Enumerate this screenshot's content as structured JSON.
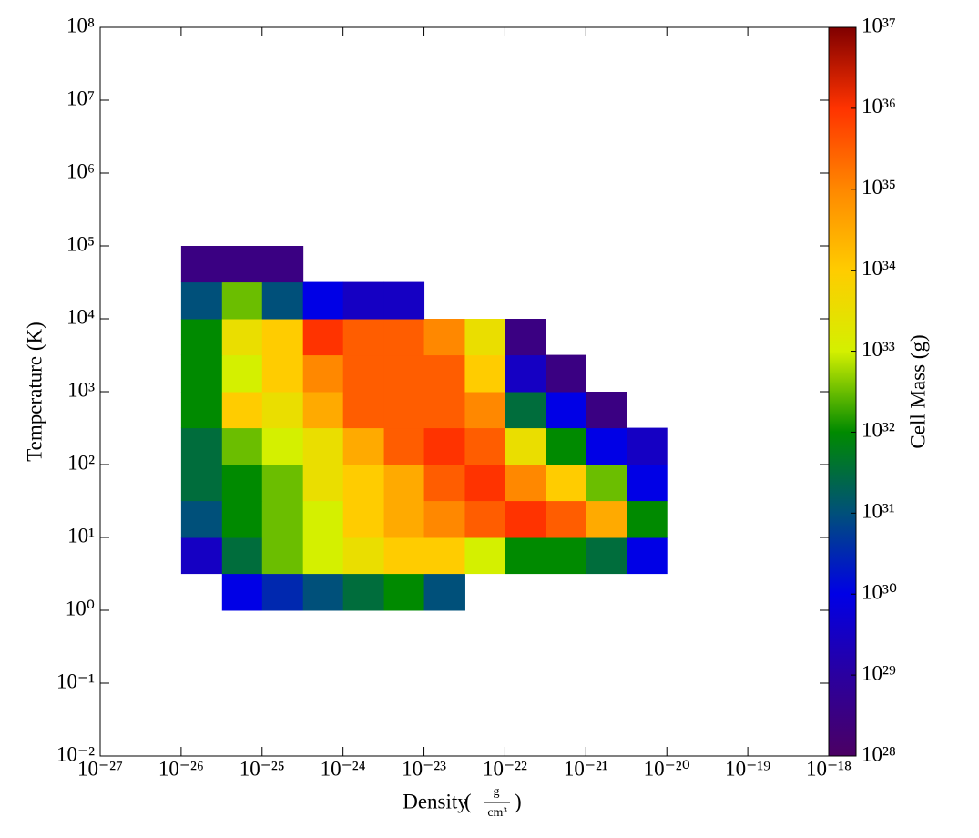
{
  "chart_data": {
    "type": "heatmap",
    "x_label": "Density",
    "x_unit_numerator": "g",
    "x_unit_denominator": "cm³",
    "y_label": "Temperature  (K)",
    "colorbar_label": "Cell Mass  (g)",
    "x_log": true,
    "y_log": true,
    "color_log": true,
    "xlim": [
      1e-27,
      1e-18
    ],
    "ylim": [
      0.01,
      100000000
    ],
    "clim": [
      1e+28,
      1e+37
    ],
    "xticks": [
      {
        "value": 1e-27,
        "label": "10⁻²⁷"
      },
      {
        "value": 1e-26,
        "label": "10⁻²⁶"
      },
      {
        "value": 1e-25,
        "label": "10⁻²⁵"
      },
      {
        "value": 1e-24,
        "label": "10⁻²⁴"
      },
      {
        "value": 1e-23,
        "label": "10⁻²³"
      },
      {
        "value": 1e-22,
        "label": "10⁻²²"
      },
      {
        "value": 1e-21,
        "label": "10⁻²¹"
      },
      {
        "value": 1e-20,
        "label": "10⁻²⁰"
      },
      {
        "value": 1e-19,
        "label": "10⁻¹⁹"
      },
      {
        "value": 1e-18,
        "label": "10⁻¹⁸"
      }
    ],
    "yticks": [
      {
        "value": 0.01,
        "label": "10⁻²"
      },
      {
        "value": 0.1,
        "label": "10⁻¹"
      },
      {
        "value": 1,
        "label": "10⁰"
      },
      {
        "value": 10,
        "label": "10¹"
      },
      {
        "value": 100,
        "label": "10²"
      },
      {
        "value": 1000,
        "label": "10³"
      },
      {
        "value": 10000,
        "label": "10⁴"
      },
      {
        "value": 100000,
        "label": "10⁵"
      },
      {
        "value": 1000000,
        "label": "10⁶"
      },
      {
        "value": 10000000,
        "label": "10⁷"
      },
      {
        "value": 100000000,
        "label": "10⁸"
      }
    ],
    "cticks": [
      {
        "value": 1e+28,
        "label": "10²⁸"
      },
      {
        "value": 1e+29,
        "label": "10²⁹"
      },
      {
        "value": 1e+30,
        "label": "10³⁰"
      },
      {
        "value": 1e+31,
        "label": "10³¹"
      },
      {
        "value": 1e+32,
        "label": "10³²"
      },
      {
        "value": 1e+33,
        "label": "10³³"
      },
      {
        "value": 1e+34,
        "label": "10³⁴"
      },
      {
        "value": 1e+35,
        "label": "10³⁵"
      },
      {
        "value": 1e+36,
        "label": "10³⁶"
      },
      {
        "value": 1e+37,
        "label": "10³⁷"
      }
    ],
    "colormap": [
      "#4b0063",
      "#2a00a0",
      "#0000e6",
      "#00507a",
      "#008a00",
      "#d4f000",
      "#ffcc00",
      "#ff8800",
      "#ff3300",
      "#800000"
    ],
    "x_edges": [
      1e-26,
      3.2e-26,
      1e-25,
      3.2e-25,
      1e-24,
      3.2e-24,
      1e-23,
      3.2e-23,
      1e-22,
      3.2e-22,
      1e-21,
      3.2e-21,
      1e-20
    ],
    "y_edges": [
      1,
      3.2,
      10,
      32,
      100,
      320,
      1000,
      3200,
      10000,
      32000,
      100000
    ],
    "values": [
      [
        null,
        1e+30,
        3.2e+30,
        1e+31,
        3.2e+31,
        1e+32,
        1e+31,
        null,
        null,
        null,
        null,
        null
      ],
      [
        3.2e+29,
        3.2e+31,
        3.2e+32,
        1e+33,
        3.2e+33,
        1e+34,
        1e+34,
        1e+33,
        1e+32,
        1e+32,
        3.2e+31,
        1e+30
      ],
      [
        1e+31,
        1e+32,
        3.2e+32,
        1e+33,
        1e+34,
        3.2e+34,
        1e+35,
        3.2e+35,
        1e+36,
        3.2e+35,
        3.2e+34,
        1e+32
      ],
      [
        3.2e+31,
        1e+32,
        3.2e+32,
        3.2e+33,
        1e+34,
        3.2e+34,
        3.2e+35,
        1e+36,
        1e+35,
        1e+34,
        3.2e+32,
        1e+30
      ],
      [
        3.2e+31,
        3.2e+32,
        1e+33,
        3.2e+33,
        3.2e+34,
        3.2e+35,
        1e+36,
        3.2e+35,
        3.2e+33,
        1e+32,
        1e+30,
        3.2e+29
      ],
      [
        1e+32,
        1e+34,
        3.2e+33,
        3.2e+34,
        3.2e+35,
        3.2e+35,
        3.2e+35,
        1e+35,
        3.2e+31,
        1e+30,
        3.2e+28,
        null
      ],
      [
        1e+32,
        1e+33,
        1e+34,
        1e+35,
        3.2e+35,
        3.2e+35,
        3.2e+35,
        1e+34,
        3.2e+29,
        3.2e+28,
        null,
        null
      ],
      [
        1e+32,
        3.2e+33,
        1e+34,
        1e+36,
        3.2e+35,
        3.2e+35,
        1e+35,
        3.2e+33,
        3.2e+28,
        null,
        null,
        null
      ],
      [
        1e+31,
        3.2e+32,
        1e+31,
        1e+30,
        3.2e+29,
        3.2e+29,
        null,
        null,
        null,
        null,
        null,
        null
      ],
      [
        3.2e+28,
        3.2e+28,
        3.2e+28,
        null,
        null,
        null,
        null,
        null,
        null,
        null,
        null,
        null
      ]
    ]
  }
}
